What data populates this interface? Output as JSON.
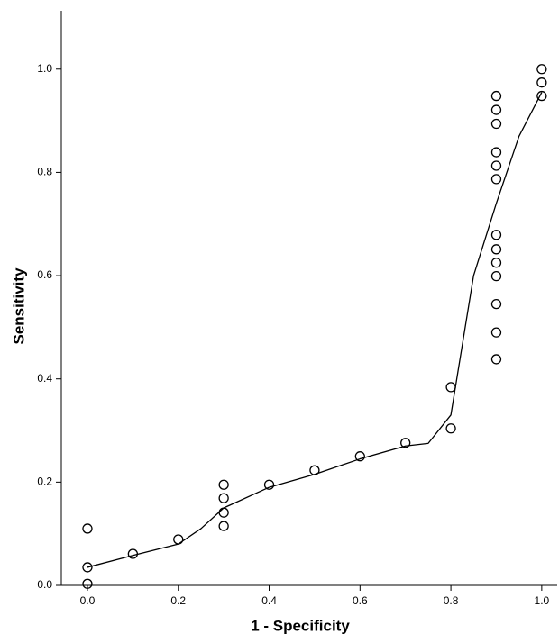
{
  "chart_data": {
    "type": "scatter",
    "x_label": "1 - Specificity",
    "y_label": "Sensitivity",
    "xlim": [
      -0.0575,
      1.034
    ],
    "ylim": [
      0,
      1.113
    ],
    "xticks": [
      {
        "value": 0,
        "label": "0.0"
      },
      0.2,
      0.4,
      0.6,
      0.8,
      {
        "value": 1,
        "label": "1.0"
      }
    ],
    "yticks": [
      {
        "value": 0,
        "label": "0.0"
      },
      0.2,
      0.4,
      0.6,
      0.8,
      {
        "value": 1,
        "label": "1.0"
      }
    ],
    "series": [
      {
        "marker": "open-circle",
        "color": "#000000",
        "x": [
          0,
          0,
          0,
          0.1,
          0.2,
          0.3,
          0.3,
          0.3,
          0.3,
          0.4,
          0.5,
          0.6,
          0.7,
          0.8,
          0.8,
          0.9,
          0.9,
          0.9,
          0.9,
          0.9,
          0.9,
          0.9,
          0.9,
          0.9,
          0.9,
          0.9,
          0.9,
          0.9,
          1.0,
          1.0,
          1.0
        ],
        "values": [
          0.11,
          0.035,
          0.003,
          0.061,
          0.089,
          0.195,
          0.169,
          0.141,
          0.115,
          0.195,
          0.223,
          0.25,
          0.276,
          0.384,
          0.304,
          0.948,
          0.921,
          0.894,
          0.839,
          0.813,
          0.787,
          0.679,
          0.651,
          0.625,
          0.599,
          0.545,
          0.49,
          0.438,
          1.0,
          0.974,
          0.948
        ]
      },
      {
        "marker": "line",
        "color": "#000000",
        "x": [
          0,
          0.1,
          0.2,
          0.25,
          0.3,
          0.4,
          0.5,
          0.6,
          0.7,
          0.75,
          0.8,
          0.85,
          0.9,
          0.95,
          1.0
        ],
        "values": [
          0.035,
          0.058,
          0.08,
          0.11,
          0.15,
          0.19,
          0.215,
          0.245,
          0.27,
          0.275,
          0.33,
          0.6,
          0.74,
          0.87,
          0.955
        ]
      }
    ]
  }
}
